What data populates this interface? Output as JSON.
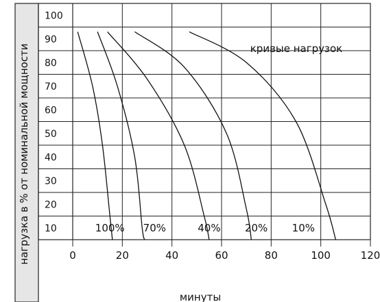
{
  "chart_data": {
    "type": "line",
    "ylabel": "нагрузка в % от номинальной мощности",
    "xlabel": "минуты",
    "annotation": "кривые нагрузок",
    "x_ticks": [
      0,
      20,
      40,
      60,
      80,
      100,
      120
    ],
    "y_ticks": [
      10,
      20,
      30,
      40,
      50,
      60,
      70,
      80,
      90,
      100
    ],
    "xlim": [
      0,
      120
    ],
    "ylim": [
      0,
      100
    ],
    "grid": true,
    "series": [
      {
        "name": "100%",
        "points": [
          [
            2,
            93
          ],
          [
            8,
            70
          ],
          [
            12,
            45
          ],
          [
            15,
            15
          ],
          [
            16,
            0
          ]
        ]
      },
      {
        "name": "70%",
        "points": [
          [
            10,
            93
          ],
          [
            18,
            70
          ],
          [
            25,
            40
          ],
          [
            28,
            10
          ],
          [
            29,
            0
          ]
        ]
      },
      {
        "name": "40%",
        "points": [
          [
            14,
            93
          ],
          [
            30,
            73
          ],
          [
            45,
            45
          ],
          [
            53,
            15
          ],
          [
            55,
            0
          ]
        ]
      },
      {
        "name": "20%",
        "points": [
          [
            25,
            93
          ],
          [
            45,
            78
          ],
          [
            62,
            50
          ],
          [
            70,
            18
          ],
          [
            72,
            0
          ]
        ]
      },
      {
        "name": "10%",
        "points": [
          [
            47,
            93
          ],
          [
            70,
            80
          ],
          [
            90,
            55
          ],
          [
            102,
            20
          ],
          [
            106,
            0
          ]
        ]
      }
    ],
    "series_labels_x": [
      15,
      33,
      55,
      74,
      93
    ],
    "series_labels_y": 10
  },
  "colors": {
    "line": "#111111",
    "grid": "#222222",
    "bg": "#ffffff"
  }
}
